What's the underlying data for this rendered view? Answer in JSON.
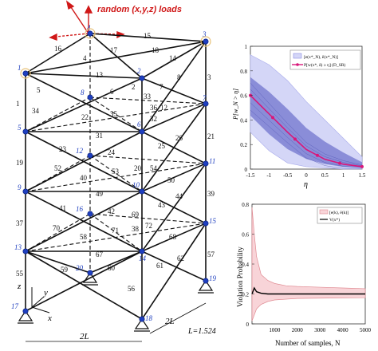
{
  "truss": {
    "load_label": "random (x,y,z) loads",
    "dim_2l_bottom": "2L",
    "dim_2l_right": "2L",
    "length_note": "L=1.524",
    "axes": {
      "x": "x",
      "y": "y",
      "z": "z"
    },
    "nodes": [
      {
        "id": "1",
        "label": "1"
      },
      {
        "id": "2",
        "label": "2"
      },
      {
        "id": "3",
        "label": "3"
      },
      {
        "id": "4",
        "label": "4"
      },
      {
        "id": "5",
        "label": "5"
      },
      {
        "id": "6",
        "label": "6"
      },
      {
        "id": "7",
        "label": "7"
      },
      {
        "id": "8",
        "label": "8"
      },
      {
        "id": "9",
        "label": "9"
      },
      {
        "id": "10",
        "label": "10"
      },
      {
        "id": "11",
        "label": "11"
      },
      {
        "id": "12",
        "label": "12"
      },
      {
        "id": "13",
        "label": "13"
      },
      {
        "id": "14",
        "label": "14"
      },
      {
        "id": "15",
        "label": "15"
      },
      {
        "id": "16",
        "label": "16"
      },
      {
        "id": "17",
        "label": "17"
      },
      {
        "id": "18",
        "label": "18"
      },
      {
        "id": "19",
        "label": "19"
      },
      {
        "id": "20",
        "label": "20"
      }
    ],
    "members": [
      "1",
      "2",
      "3",
      "4",
      "5",
      "6",
      "7",
      "8",
      "12",
      "13",
      "14",
      "15",
      "16",
      "17",
      "18",
      "19",
      "20",
      "21",
      "22",
      "23",
      "24",
      "25",
      "26",
      "31",
      "32",
      "33",
      "34",
      "35",
      "36",
      "37",
      "38",
      "39",
      "40",
      "41",
      "42",
      "43",
      "44",
      "49",
      "50",
      "52",
      "53",
      "54",
      "55",
      "56",
      "57",
      "58",
      "59",
      "60",
      "61",
      "62",
      "67",
      "68",
      "69",
      "70",
      "71",
      "72"
    ]
  },
  "chart_top": {
    "ylabel": "P[w_N > η]",
    "xlabel": "η",
    "legend": [
      "[e(x*_N), ē(x*_N)]",
      "P[w(x*, δ) ≥ η] (D_SR)"
    ],
    "colors": {
      "band_outer": "#d4d6f7",
      "band_inner": "#7d80d2",
      "line": "#d8177a"
    },
    "y_ticks": [
      "0",
      "0.2",
      "0.4",
      "0.6",
      "0.8",
      "1"
    ],
    "x_ticks": [
      "-1.5",
      "-1",
      "-0.5",
      "0",
      "0.5",
      "1",
      "1.5"
    ]
  },
  "chart_bottom": {
    "ylabel": "Violation Probability",
    "xlabel": "Number of samples, N",
    "legend": [
      "[e(k), ē(k)]",
      "V(x*)"
    ],
    "colors": {
      "band": "#f8d4d8",
      "band_edge": "#e08b93",
      "line": "#000000"
    },
    "y_ticks": [
      "0",
      "0.2",
      "0.4",
      "0.6",
      "0.8"
    ],
    "x_ticks": [
      "1000",
      "2000",
      "3000",
      "4000",
      "5000"
    ]
  },
  "chart_data": [
    {
      "type": "line",
      "xlabel": "η",
      "ylabel": "P[w_N > η]",
      "xlim": [
        -1.5,
        1.5
      ],
      "ylim": [
        0,
        1
      ],
      "series": [
        {
          "name": "P[w(x*, δ) ≥ η] (D_SR)",
          "x": [
            -1.5,
            -1.0,
            -0.5,
            0.0,
            0.5,
            1.0,
            1.5
          ],
          "y": [
            0.6,
            0.45,
            0.3,
            0.16,
            0.08,
            0.04,
            0.02
          ]
        },
        {
          "name": "[e(x*_N), ē(x*_N)] upper",
          "x": [
            -1.5,
            -1.0,
            -0.5,
            0.0,
            0.5,
            1.0,
            1.5
          ],
          "y": [
            0.93,
            0.85,
            0.72,
            0.55,
            0.4,
            0.25,
            0.1
          ]
        },
        {
          "name": "[e(x*_N), ē(x*_N)] lower",
          "x": [
            -1.5,
            -1.0,
            -0.5,
            0.0,
            0.5,
            1.0,
            1.5
          ],
          "y": [
            0.3,
            0.15,
            0.05,
            0.02,
            0.01,
            0.0,
            0.0
          ]
        }
      ],
      "markers_x": [
        -1.5,
        -0.9,
        -0.3,
        0.3,
        0.9,
        1.5
      ]
    },
    {
      "type": "area",
      "xlabel": "Number of samples, N",
      "ylabel": "Violation Probability",
      "xlim": [
        0,
        5000
      ],
      "ylim": [
        0,
        0.8
      ],
      "series": [
        {
          "name": "V(x*)",
          "x": [
            0,
            100,
            200,
            400,
            700,
            1000,
            2000,
            3000,
            4000,
            5000
          ],
          "y": [
            0.2,
            0.24,
            0.215,
            0.205,
            0.2,
            0.2,
            0.2,
            0.2,
            0.2,
            0.2
          ]
        },
        {
          "name": "[e(k), ē(k)] upper",
          "x": [
            0,
            100,
            200,
            400,
            700,
            1000,
            1500,
            2000,
            3000,
            4000,
            5000
          ],
          "y": [
            0.78,
            0.6,
            0.45,
            0.33,
            0.29,
            0.27,
            0.255,
            0.25,
            0.245,
            0.24,
            0.235
          ]
        },
        {
          "name": "[e(k), ē(k)] lower",
          "x": [
            0,
            100,
            200,
            400,
            700,
            1000,
            1500,
            2000,
            3000,
            4000,
            5000
          ],
          "y": [
            0.02,
            0.06,
            0.1,
            0.13,
            0.15,
            0.16,
            0.165,
            0.17,
            0.172,
            0.174,
            0.175
          ]
        }
      ]
    }
  ]
}
